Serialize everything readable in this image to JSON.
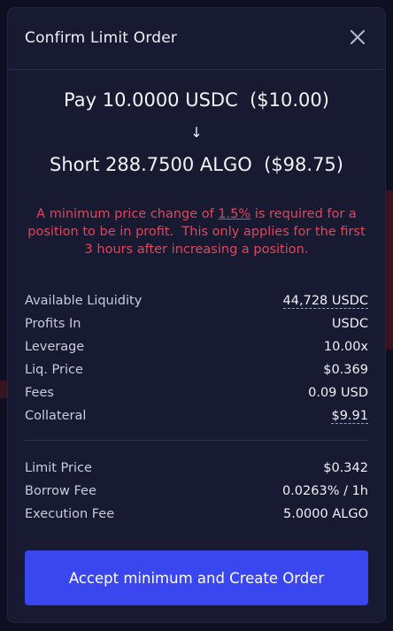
{
  "modal": {
    "title": "Confirm Limit Order",
    "pay_line": "Pay 10.0000 USDC  ($10.00)",
    "arrow": "↓",
    "short_line": "Short 288.7500 ALGO  ($98.75)",
    "warning": {
      "part1": "A minimum price change of ",
      "link": "1.5%",
      "part2": " is required for a position to be in profit.  This only applies for the first 3 hours after increasing a position."
    },
    "details": [
      {
        "label": "Available Liquidity",
        "value": "44,728 USDC"
      },
      {
        "label": "Profits In",
        "value": "USDC"
      },
      {
        "label": "Leverage",
        "value": "10.00x"
      },
      {
        "label": "Liq. Price",
        "value": "$0.369"
      },
      {
        "label": "Fees",
        "value": "0.09 USD"
      },
      {
        "label": "Collateral",
        "value": "$9.91"
      }
    ],
    "order_details": [
      {
        "label": "Limit Price",
        "value": "$0.342"
      },
      {
        "label": "Borrow Fee",
        "value": "0.0263% / 1h"
      },
      {
        "label": "Execution Fee",
        "value": "5.0000 ALGO"
      }
    ],
    "cta_label": "Accept minimum and Create Order"
  },
  "colors": {
    "accent": "#3a46ee",
    "warning": "#e0465d",
    "modal_bg": "#171a30"
  }
}
